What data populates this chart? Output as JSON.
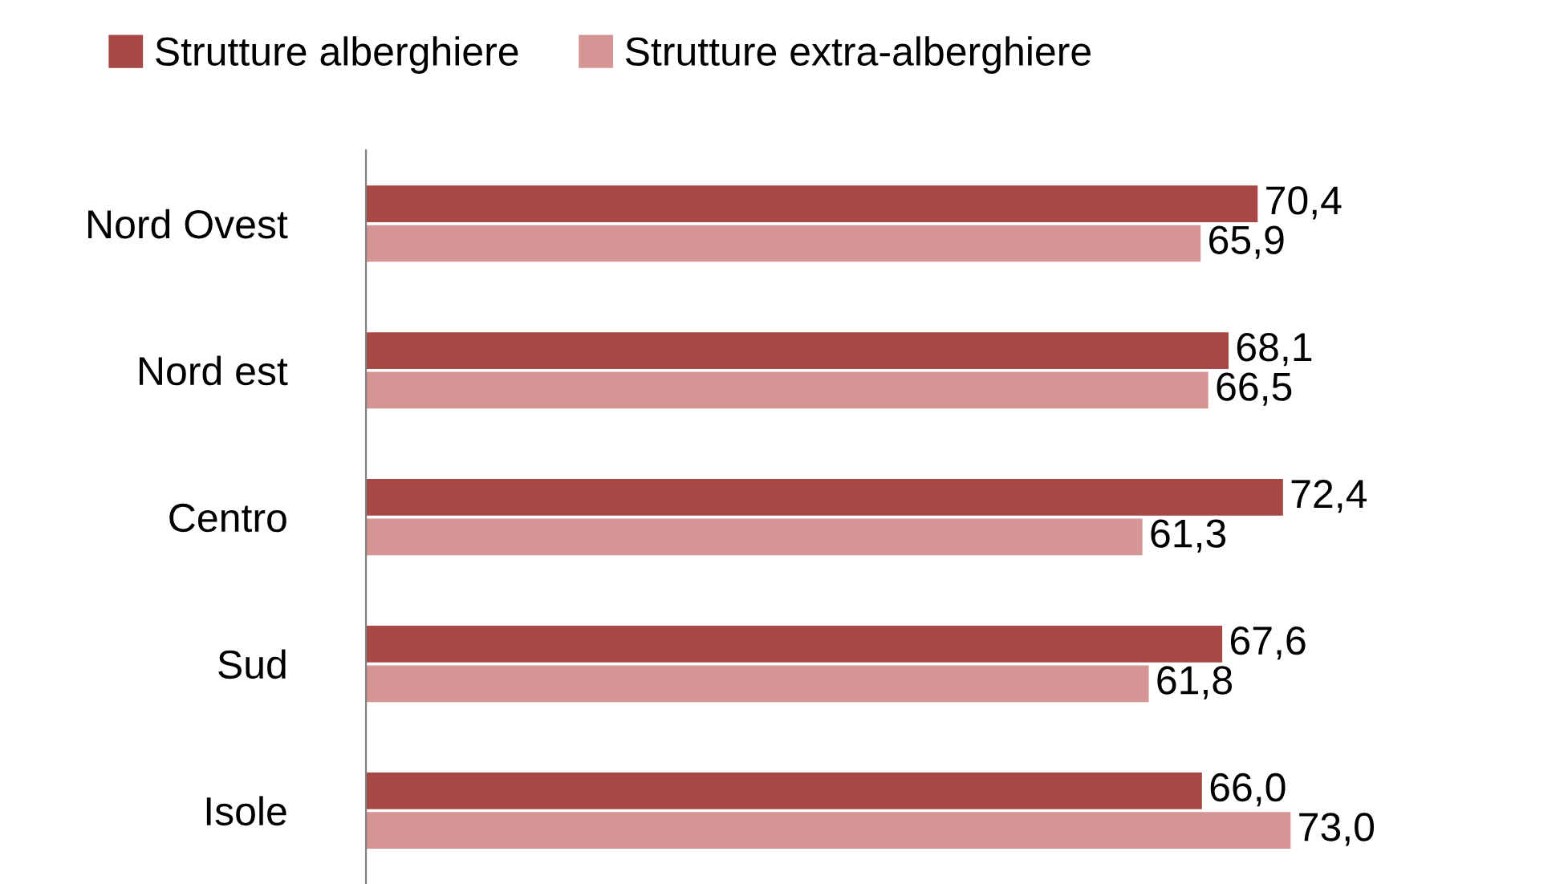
{
  "chart_data": {
    "type": "bar",
    "orientation": "horizontal",
    "categories": [
      "Nord Ovest",
      "Nord est",
      "Centro",
      "Sud",
      "Isole"
    ],
    "series": [
      {
        "name": "Strutture alberghiere",
        "color": "#a84846",
        "values": [
          70.4,
          68.1,
          72.4,
          67.6,
          66.0
        ],
        "value_labels": [
          "70,4",
          "68,1",
          "72,4",
          "67,6",
          "66,0"
        ]
      },
      {
        "name": "Strutture extra-alberghiere",
        "color": "#d49594",
        "values": [
          65.9,
          66.5,
          61.3,
          61.8,
          73.0
        ],
        "value_labels": [
          "65,9",
          "66,5",
          "61,3",
          "61,8",
          "73,0"
        ]
      }
    ],
    "legend": "top",
    "grid": false
  }
}
